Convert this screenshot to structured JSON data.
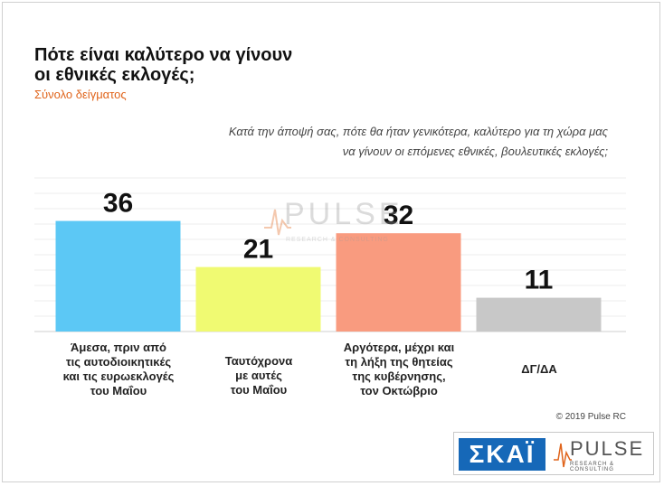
{
  "title_line1": "Πότε είναι καλύτερο να γίνουν",
  "title_line2": "οι εθνικές εκλογές;",
  "subtitle": "Σύνολο δείγματος",
  "question_line1": "Κατά την άποψή σας, πότε θα ήταν γενικότερα, καλύτερο για τη χώρα μας",
  "question_line2": "να γίνουν οι επόμενες εθνικές, βουλευτικές εκλογές;",
  "copyright": "© 2019 Pulse RC",
  "logos": {
    "skai": "ΣΚΑΪ",
    "pulse": "PULSE",
    "pulse_sub": "RESEARCH & CONSULTING"
  },
  "watermark": {
    "word": "PULSE",
    "sub": "RESEARCH & CONSULTING"
  },
  "chart_data": {
    "type": "bar",
    "categories": [
      [
        "Άμεσα, πριν από",
        "τις αυτοδιοικητικές",
        "και τις ευρωεκλογές",
        "του Μαΐου"
      ],
      [
        "Ταυτόχρονα",
        "με αυτές",
        "του Μαΐου"
      ],
      [
        "Αργότερα, μέχρι και",
        "τη λήξη της θητείας",
        "της κυβέρνησης,",
        "τον Οκτώβριο"
      ],
      [
        "ΔΓ/ΔΑ"
      ]
    ],
    "values": [
      36,
      21,
      32,
      11
    ],
    "colors": [
      "#5cc8f5",
      "#f0fa72",
      "#f99b7f",
      "#c8c8c8"
    ],
    "ylim": [
      0,
      50
    ],
    "grid": true,
    "data_labels": true
  }
}
